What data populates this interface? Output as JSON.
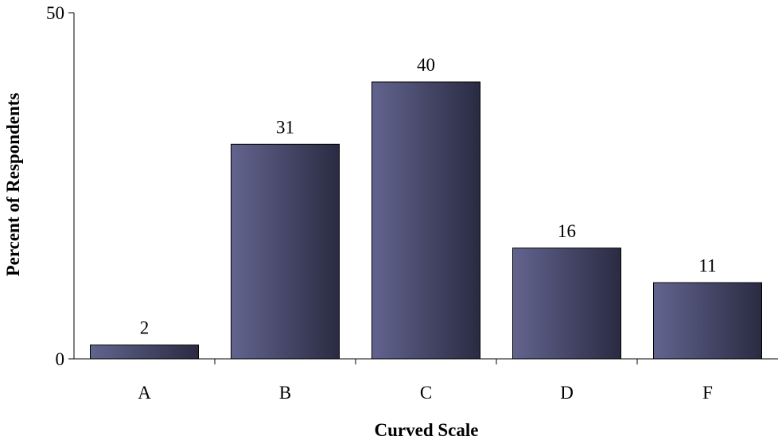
{
  "chart_data": {
    "type": "bar",
    "categories": [
      "A",
      "B",
      "C",
      "D",
      "F"
    ],
    "values": [
      2,
      31,
      40,
      16,
      11
    ],
    "data_labels": [
      "2",
      "31",
      "40",
      "16",
      "11"
    ],
    "title": "",
    "xlabel": "Curved Scale",
    "ylabel": "Percent of  Respondents",
    "ylim": [
      0,
      50
    ],
    "yticks": [
      0,
      50
    ],
    "ytick_labels": [
      "0",
      "50"
    ],
    "grid": false,
    "legend": "none",
    "colors": {
      "bar_light": "#62648f",
      "bar_dark": "#2a2b42",
      "axis": "#000000"
    }
  }
}
